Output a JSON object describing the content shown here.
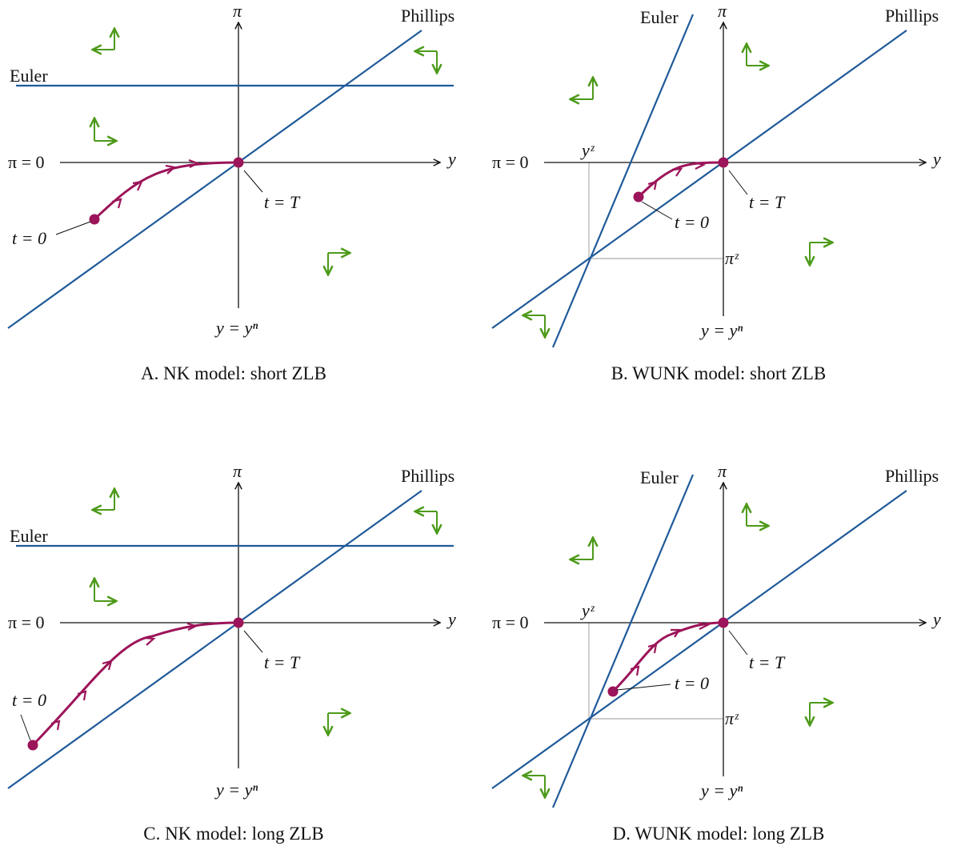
{
  "colors": {
    "axis": "#111111",
    "curve": "#1f5a99",
    "path": "#9c1459",
    "arrow": "#4d9a1a",
    "guide": "#bbbbbb"
  },
  "panels": [
    {
      "id": "A",
      "caption": "A. NK model: short ZLB",
      "labels": {
        "pi_axis": "π",
        "y_axis": "y",
        "pi_zero": "π = 0",
        "y_natural": "y = yⁿ",
        "phillips": "Phillips",
        "euler": "Euler",
        "t_start": "t = 0",
        "t_end": "t = T"
      },
      "euler_kind": "horizontal",
      "path_length": "short",
      "show_zlb_guides": false
    },
    {
      "id": "B",
      "caption": "B. WUNK model: short ZLB",
      "labels": {
        "pi_axis": "π",
        "y_axis": "y",
        "pi_zero": "π = 0",
        "y_natural": "y = yⁿ",
        "phillips": "Phillips",
        "euler": "Euler",
        "t_start": "t = 0",
        "t_end": "t = T",
        "y_z": "yᶻ",
        "pi_z": "πᶻ"
      },
      "euler_kind": "steep",
      "path_length": "short",
      "show_zlb_guides": true
    },
    {
      "id": "C",
      "caption": "C. NK model: long ZLB",
      "labels": {
        "pi_axis": "π",
        "y_axis": "y",
        "pi_zero": "π = 0",
        "y_natural": "y = yⁿ",
        "phillips": "Phillips",
        "euler": "Euler",
        "t_start": "t = 0",
        "t_end": "t = T"
      },
      "euler_kind": "horizontal",
      "path_length": "long",
      "show_zlb_guides": false
    },
    {
      "id": "D",
      "caption": "D. WUNK model: long ZLB",
      "labels": {
        "pi_axis": "π",
        "y_axis": "y",
        "pi_zero": "π = 0",
        "y_natural": "y = yⁿ",
        "phillips": "Phillips",
        "euler": "Euler",
        "t_start": "t = 0",
        "t_end": "t = T",
        "y_z": "yᶻ",
        "pi_z": "πᶻ"
      },
      "euler_kind": "steep",
      "path_length": "long",
      "show_zlb_guides": true
    }
  ]
}
